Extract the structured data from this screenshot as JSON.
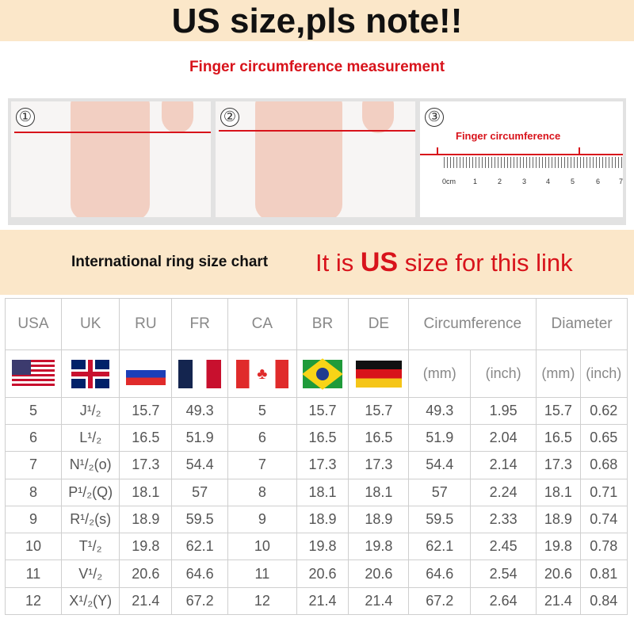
{
  "banner": {
    "title": "US size,pls note!!"
  },
  "measurement": {
    "title": "Finger circumference measurement",
    "steps": [
      "①",
      "②",
      "③"
    ],
    "ruler_label": "Finger circumference",
    "ruler_ticks": [
      "0cm",
      "1",
      "2",
      "3",
      "4",
      "5",
      "6",
      "7"
    ]
  },
  "chart_heading": {
    "left": "International ring size chart",
    "right_pre": "It is ",
    "right_us": "US",
    "right_post": " size for this link"
  },
  "table": {
    "headers": [
      "USA",
      "UK",
      "RU",
      "FR",
      "CA",
      "BR",
      "DE",
      "Circumference",
      "Diameter"
    ],
    "flags": [
      "us-flag",
      "uk-flag",
      "ru-flag",
      "fr-flag",
      "ca-flag",
      "br-flag",
      "de-flag"
    ],
    "units": [
      "(mm)",
      "(inch)",
      "(mm)",
      "(inch)"
    ],
    "rows": [
      [
        "5",
        "J¹/₂",
        "15.7",
        "49.3",
        "5",
        "15.7",
        "15.7",
        "49.3",
        "1.95",
        "15.7",
        "0.62"
      ],
      [
        "6",
        "L¹/₂",
        "16.5",
        "51.9",
        "6",
        "16.5",
        "16.5",
        "51.9",
        "2.04",
        "16.5",
        "0.65"
      ],
      [
        "7",
        "N¹/₂(o)",
        "17.3",
        "54.4",
        "7",
        "17.3",
        "17.3",
        "54.4",
        "2.14",
        "17.3",
        "0.68"
      ],
      [
        "8",
        "P¹/₂(Q)",
        "18.1",
        "57",
        "8",
        "18.1",
        "18.1",
        "57",
        "2.24",
        "18.1",
        "0.71"
      ],
      [
        "9",
        "R¹/₂(s)",
        "18.9",
        "59.5",
        "9",
        "18.9",
        "18.9",
        "59.5",
        "2.33",
        "18.9",
        "0.74"
      ],
      [
        "10",
        "T¹/₂",
        "19.8",
        "62.1",
        "10",
        "19.8",
        "19.8",
        "62.1",
        "2.45",
        "19.8",
        "0.78"
      ],
      [
        "11",
        "V¹/₂",
        "20.6",
        "64.6",
        "11",
        "20.6",
        "20.6",
        "64.6",
        "2.54",
        "20.6",
        "0.81"
      ],
      [
        "12",
        "X¹/₂(Y)",
        "21.4",
        "67.2",
        "12",
        "21.4",
        "21.4",
        "67.2",
        "2.64",
        "21.4",
        "0.84"
      ]
    ]
  }
}
